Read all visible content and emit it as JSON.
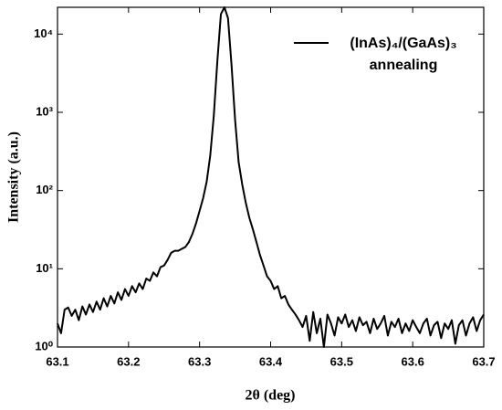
{
  "chart_data": {
    "type": "line",
    "xlabel": "2θ (deg)",
    "ylabel": "Intensity (a.u.)",
    "xlim": [
      63.1,
      63.7
    ],
    "xticks": [
      63.1,
      63.2,
      63.3,
      63.4,
      63.5,
      63.6,
      63.7
    ],
    "ylim": [
      1,
      22000
    ],
    "log_y": true,
    "yticks": [
      {
        "value": 1,
        "label": "10⁰"
      },
      {
        "value": 10,
        "label": "10¹"
      },
      {
        "value": 100,
        "label": "10²"
      },
      {
        "value": 1000,
        "label": "10³"
      },
      {
        "value": 10000,
        "label": "10⁴"
      }
    ],
    "legend": "upper right",
    "grid": false,
    "x": [
      63.1,
      63.105,
      63.11,
      63.115,
      63.12,
      63.125,
      63.13,
      63.135,
      63.14,
      63.145,
      63.15,
      63.155,
      63.16,
      63.165,
      63.17,
      63.175,
      63.18,
      63.185,
      63.19,
      63.195,
      63.2,
      63.205,
      63.21,
      63.215,
      63.22,
      63.225,
      63.23,
      63.235,
      63.24,
      63.245,
      63.25,
      63.255,
      63.26,
      63.265,
      63.27,
      63.275,
      63.28,
      63.285,
      63.29,
      63.295,
      63.3,
      63.305,
      63.31,
      63.315,
      63.32,
      63.325,
      63.33,
      63.335,
      63.34,
      63.345,
      63.35,
      63.355,
      63.36,
      63.365,
      63.37,
      63.375,
      63.38,
      63.385,
      63.39,
      63.395,
      63.4,
      63.405,
      63.41,
      63.415,
      63.42,
      63.425,
      63.43,
      63.435,
      63.44,
      63.445,
      63.45,
      63.455,
      63.46,
      63.465,
      63.47,
      63.475,
      63.48,
      63.485,
      63.49,
      63.495,
      63.5,
      63.505,
      63.51,
      63.515,
      63.52,
      63.525,
      63.53,
      63.535,
      63.54,
      63.545,
      63.55,
      63.555,
      63.56,
      63.565,
      63.57,
      63.575,
      63.58,
      63.585,
      63.59,
      63.595,
      63.6,
      63.605,
      63.61,
      63.615,
      63.62,
      63.625,
      63.63,
      63.635,
      63.64,
      63.645,
      63.65,
      63.655,
      63.66,
      63.665,
      63.67,
      63.675,
      63.68,
      63.685,
      63.69,
      63.695,
      63.7
    ],
    "series": [
      {
        "name": "(InAs)₄/(GaAs)₃ annealing",
        "color": "#000000",
        "values": [
          2.0,
          1.5,
          3.0,
          3.2,
          2.5,
          3.0,
          2.2,
          3.3,
          2.6,
          3.5,
          2.8,
          3.8,
          3.0,
          4.2,
          3.3,
          4.5,
          3.6,
          5.0,
          4.0,
          5.5,
          4.5,
          6.0,
          5.0,
          6.5,
          5.5,
          7.5,
          7.0,
          9.0,
          8.0,
          10.5,
          11,
          13,
          16,
          17,
          17,
          18,
          19,
          22,
          28,
          38,
          55,
          80,
          130,
          280,
          900,
          4500,
          18000,
          22000,
          16000,
          4000,
          800,
          230,
          120,
          70,
          45,
          32,
          22,
          15,
          11,
          8,
          7,
          5.5,
          6.0,
          4.2,
          4.5,
          3.5,
          3.0,
          2.6,
          2.2,
          1.8,
          2.5,
          1.2,
          2.8,
          1.5,
          2.3,
          1.0,
          2.6,
          2.0,
          1.4,
          2.4,
          2.0,
          2.6,
          1.8,
          2.2,
          1.6,
          2.4,
          1.9,
          2.1,
          1.5,
          2.3,
          1.7,
          2.0,
          2.5,
          1.4,
          2.1,
          1.8,
          2.3,
          1.5,
          2.0,
          1.6,
          2.2,
          1.8,
          1.5,
          2.0,
          2.3,
          1.4,
          1.9,
          2.1,
          1.3,
          2.0,
          1.7,
          2.2,
          1.1,
          1.9,
          2.2,
          1.4,
          2.0,
          2.4,
          1.6,
          2.2,
          2.6
        ]
      }
    ]
  }
}
